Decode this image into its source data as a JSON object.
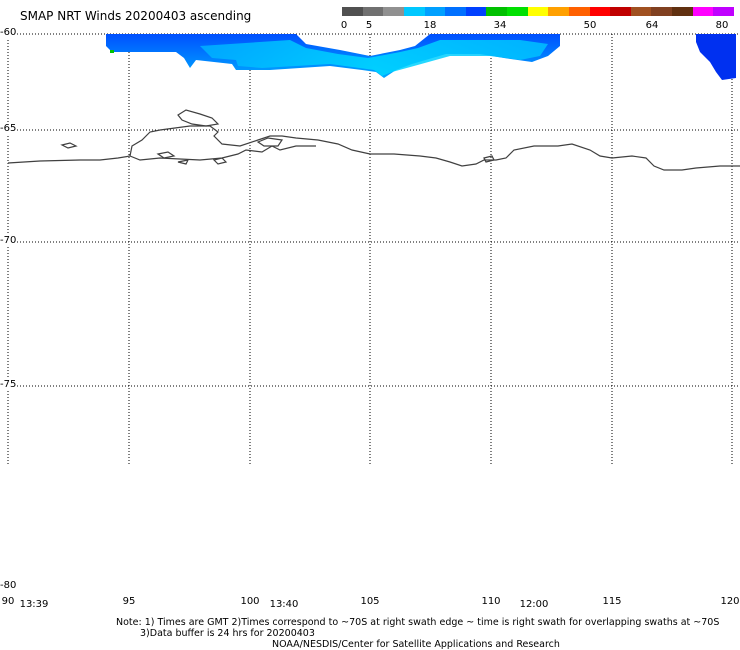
{
  "title": "SMAP NRT Winds 20200403 ascending",
  "colorbar": {
    "labels": [
      "0",
      "5",
      "18",
      "34",
      "50",
      "64",
      "80"
    ],
    "colors": [
      "#505050",
      "#707070",
      "#909090",
      "#00c8ff",
      "#00a0ff",
      "#0070ff",
      "#0040ff",
      "#00c000",
      "#00e000",
      "#ffff00",
      "#ffa000",
      "#ff6000",
      "#ff0000",
      "#c00000",
      "#a05020",
      "#804020",
      "#603010",
      "#ff00ff",
      "#c000ff"
    ]
  },
  "map": {
    "lat_labels": [
      "-60",
      "-65",
      "-70",
      "-75",
      "-80"
    ],
    "lon_labels": [
      "90",
      "95",
      "100",
      "105",
      "110",
      "115",
      "120"
    ],
    "time_labels": [
      "13:39",
      "13:40",
      "12:00"
    ]
  },
  "notes": {
    "line1": "Note: 1) Times are GMT 2)Times correspond to ~70S at right swath edge ~ time is right swath for overlapping swaths at ~70S",
    "line2": "3)Data buffer is 24 hrs for 20200403",
    "line3": "NOAA/NESDIS/Center for Satellite Applications and Research"
  }
}
